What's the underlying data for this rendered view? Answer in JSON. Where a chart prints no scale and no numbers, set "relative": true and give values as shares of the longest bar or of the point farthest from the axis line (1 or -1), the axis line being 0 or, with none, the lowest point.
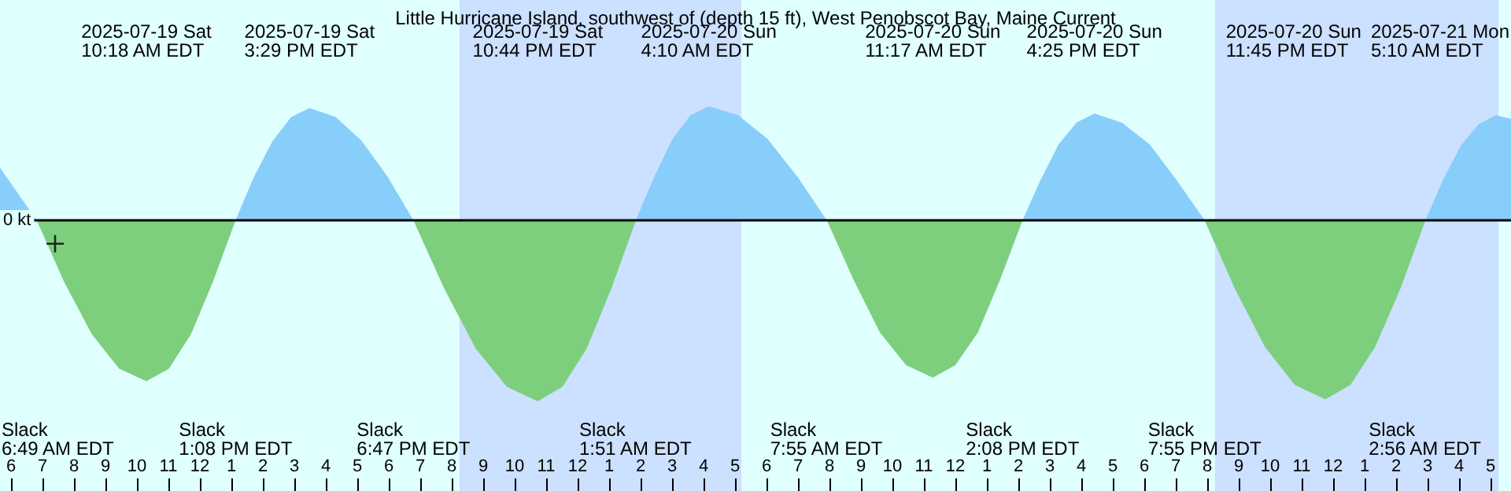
{
  "chart_data": {
    "type": "area",
    "title": "Little Hurricane Island, southwest of (depth 15 ft), West Penobscot Bay, Maine Current",
    "relative": true,
    "xlim": [
      "2025-07-19T05:39",
      "2025-07-21T05:39"
    ],
    "xticks": [
      {
        "value": "2025-07-19T06:00",
        "label": "6"
      },
      {
        "value": "2025-07-19T07:00",
        "label": "7"
      },
      {
        "value": "2025-07-19T08:00",
        "label": "8"
      },
      {
        "value": "2025-07-19T09:00",
        "label": "9"
      },
      {
        "value": "2025-07-19T10:00",
        "label": "10"
      },
      {
        "value": "2025-07-19T11:00",
        "label": "11"
      },
      {
        "value": "2025-07-19T12:00",
        "label": "12"
      },
      {
        "value": "2025-07-19T13:00",
        "label": "1"
      },
      {
        "value": "2025-07-19T14:00",
        "label": "2"
      },
      {
        "value": "2025-07-19T15:00",
        "label": "3"
      },
      {
        "value": "2025-07-19T16:00",
        "label": "4"
      },
      {
        "value": "2025-07-19T17:00",
        "label": "5"
      },
      {
        "value": "2025-07-19T18:00",
        "label": "6"
      },
      {
        "value": "2025-07-19T19:00",
        "label": "7"
      },
      {
        "value": "2025-07-19T20:00",
        "label": "8"
      },
      {
        "value": "2025-07-19T21:00",
        "label": "9"
      },
      {
        "value": "2025-07-19T22:00",
        "label": "10"
      },
      {
        "value": "2025-07-19T23:00",
        "label": "11"
      },
      {
        "value": "2025-07-20T00:00",
        "label": "12"
      },
      {
        "value": "2025-07-20T01:00",
        "label": "1"
      },
      {
        "value": "2025-07-20T02:00",
        "label": "2"
      },
      {
        "value": "2025-07-20T03:00",
        "label": "3"
      },
      {
        "value": "2025-07-20T04:00",
        "label": "4"
      },
      {
        "value": "2025-07-20T05:00",
        "label": "5"
      },
      {
        "value": "2025-07-20T06:00",
        "label": "6"
      },
      {
        "value": "2025-07-20T07:00",
        "label": "7"
      },
      {
        "value": "2025-07-20T08:00",
        "label": "8"
      },
      {
        "value": "2025-07-20T09:00",
        "label": "9"
      },
      {
        "value": "2025-07-20T10:00",
        "label": "10"
      },
      {
        "value": "2025-07-20T11:00",
        "label": "11"
      },
      {
        "value": "2025-07-20T12:00",
        "label": "12"
      },
      {
        "value": "2025-07-20T13:00",
        "label": "1"
      },
      {
        "value": "2025-07-20T14:00",
        "label": "2"
      },
      {
        "value": "2025-07-20T15:00",
        "label": "3"
      },
      {
        "value": "2025-07-20T16:00",
        "label": "4"
      },
      {
        "value": "2025-07-20T17:00",
        "label": "5"
      },
      {
        "value": "2025-07-20T18:00",
        "label": "6"
      },
      {
        "value": "2025-07-20T19:00",
        "label": "7"
      },
      {
        "value": "2025-07-20T20:00",
        "label": "8"
      },
      {
        "value": "2025-07-20T21:00",
        "label": "9"
      },
      {
        "value": "2025-07-20T22:00",
        "label": "10"
      },
      {
        "value": "2025-07-20T23:00",
        "label": "11"
      },
      {
        "value": "2025-07-21T00:00",
        "label": "12"
      },
      {
        "value": "2025-07-21T01:00",
        "label": "1"
      },
      {
        "value": "2025-07-21T02:00",
        "label": "2"
      },
      {
        "value": "2025-07-21T03:00",
        "label": "3"
      },
      {
        "value": "2025-07-21T04:00",
        "label": "4"
      },
      {
        "value": "2025-07-21T05:00",
        "label": "5"
      }
    ],
    "series": [
      {
        "color": "#87cefa",
        "x": [
          "2025-07-19T05:39",
          "2025-07-19T06:49",
          "2025-07-19T10:00",
          "2025-07-19T13:08",
          "2025-07-19T13:43",
          "2025-07-19T14:19",
          "2025-07-19T14:54",
          "2025-07-19T15:29",
          "2025-07-19T16:19",
          "2025-07-19T17:08",
          "2025-07-19T17:58",
          "2025-07-19T18:47",
          "2025-07-19T22:00",
          "2025-07-20T01:51",
          "2025-07-20T02:26",
          "2025-07-20T03:01",
          "2025-07-20T03:35",
          "2025-07-20T04:10",
          "2025-07-20T05:06",
          "2025-07-20T06:02",
          "2025-07-20T06:59",
          "2025-07-20T07:55",
          "2025-07-20T11:00",
          "2025-07-20T14:08",
          "2025-07-20T14:42",
          "2025-07-20T15:17",
          "2025-07-20T15:51",
          "2025-07-20T16:25",
          "2025-07-20T17:17",
          "2025-07-20T18:10",
          "2025-07-20T19:02",
          "2025-07-20T19:55",
          "2025-07-20T23:00",
          "2025-07-21T02:56",
          "2025-07-21T03:29",
          "2025-07-21T04:03",
          "2025-07-21T04:37",
          "2025-07-21T05:10",
          "2025-07-21T05:39"
        ],
        "values": [
          0.29,
          0,
          null,
          0,
          0.24,
          0.44,
          0.57,
          0.62,
          0.57,
          0.44,
          0.24,
          0,
          null,
          0,
          0.24,
          0.45,
          0.58,
          0.63,
          0.58,
          0.45,
          0.24,
          0,
          null,
          0,
          0.22,
          0.42,
          0.54,
          0.59,
          0.54,
          0.42,
          0.22,
          0,
          null,
          0,
          0.22,
          0.41,
          0.53,
          0.58,
          0.56
        ]
      },
      {
        "color": "#7dcf7d",
        "x": [
          "2025-07-19T06:49",
          "2025-07-19T07:41",
          "2025-07-19T08:34",
          "2025-07-19T09:26",
          "2025-07-19T10:18",
          "2025-07-19T11:01",
          "2025-07-19T11:43",
          "2025-07-19T12:25",
          "2025-07-19T13:08",
          "2025-07-19T16:00",
          "2025-07-19T18:47",
          "2025-07-19T19:46",
          "2025-07-19T20:46",
          "2025-07-19T21:45",
          "2025-07-19T22:44",
          "2025-07-19T23:31",
          "2025-07-20T00:17",
          "2025-07-20T01:04",
          "2025-07-20T01:51",
          "2025-07-20T05:00",
          "2025-07-20T07:55",
          "2025-07-20T08:46",
          "2025-07-20T09:36",
          "2025-07-20T10:26",
          "2025-07-20T11:17",
          "2025-07-20T12:00",
          "2025-07-20T12:43",
          "2025-07-20T13:25",
          "2025-07-20T14:08",
          "2025-07-20T17:00",
          "2025-07-20T19:55",
          "2025-07-20T20:53",
          "2025-07-20T21:50",
          "2025-07-20T22:47",
          "2025-07-20T23:45",
          "2025-07-21T00:33",
          "2025-07-21T01:20",
          "2025-07-21T02:08",
          "2025-07-21T02:56"
        ],
        "values": [
          0,
          -0.34,
          -0.63,
          -0.82,
          -0.89,
          -0.82,
          -0.63,
          -0.34,
          0,
          null,
          0,
          -0.38,
          -0.71,
          -0.92,
          -1,
          -0.92,
          -0.71,
          -0.38,
          0,
          null,
          0,
          -0.33,
          -0.62,
          -0.8,
          -0.87,
          -0.8,
          -0.62,
          -0.33,
          0,
          null,
          0,
          -0.38,
          -0.7,
          -0.91,
          -0.99,
          -0.91,
          -0.7,
          -0.38,
          0
        ]
      },
      {
        "type": "scatter",
        "marker": "cross",
        "color": "#000000",
        "x": [
          "2025-07-19T07:24"
        ],
        "values": [
          -0.13
        ]
      }
    ],
    "ref_lines": [
      {
        "axis": "y",
        "value": 0,
        "label": "0 kt",
        "color": "#000000"
      }
    ],
    "bands": [
      {
        "axis": "x",
        "from": "2025-07-19T20:15",
        "to": "2025-07-20T05:12",
        "color": "#cce0ff"
      },
      {
        "axis": "x",
        "from": "2025-07-20T20:15",
        "to": "2025-07-21T05:15",
        "color": "#cce0ff"
      }
    ],
    "annotations": [
      "2025-07-19 Sat\n10:18 AM EDT",
      "2025-07-19 Sat\n3:29 PM EDT",
      "2025-07-19 Sat\n10:44 PM EDT",
      "2025-07-20 Sun\n4:10 AM EDT",
      "2025-07-20 Sun\n11:17 AM EDT",
      "2025-07-20 Sun\n4:25 PM EDT",
      "2025-07-20 Sun\n11:45 PM EDT",
      "2025-07-21 Mon\n5:10 AM EDT",
      "Slack\n6:49 AM EDT",
      "Slack\n1:08 PM EDT",
      "Slack\n6:47 PM EDT",
      "Slack\n1:51 AM EDT",
      "Slack\n7:55 AM EDT",
      "Slack\n2:08 PM EDT",
      "Slack\n7:55 PM EDT",
      "Slack\n2:56 AM EDT"
    ]
  }
}
